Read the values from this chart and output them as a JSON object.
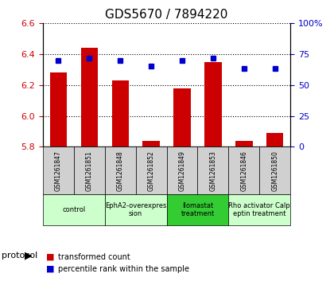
{
  "title": "GDS5670 / 7894220",
  "samples": [
    "GSM1261847",
    "GSM1261851",
    "GSM1261848",
    "GSM1261852",
    "GSM1261849",
    "GSM1261853",
    "GSM1261846",
    "GSM1261850"
  ],
  "red_values": [
    6.28,
    6.44,
    6.23,
    5.84,
    6.18,
    6.35,
    5.84,
    5.89
  ],
  "blue_values": [
    70,
    72,
    70,
    65,
    70,
    72,
    63,
    63
  ],
  "ylim_left": [
    5.8,
    6.6
  ],
  "ylim_right": [
    0,
    100
  ],
  "yticks_left": [
    5.8,
    6.0,
    6.2,
    6.4,
    6.6
  ],
  "yticks_right": [
    0,
    25,
    50,
    75,
    100
  ],
  "ytick_labels_right": [
    "0",
    "25",
    "50",
    "75",
    "100%"
  ],
  "bar_color": "#cc0000",
  "dot_color": "#0000cc",
  "bar_bottom": 5.8,
  "groups": [
    {
      "label": "control",
      "indices": [
        0,
        1
      ],
      "color": "#ccffcc"
    },
    {
      "label": "EphA2-overexpres\nsion",
      "indices": [
        2,
        3
      ],
      "color": "#ccffcc"
    },
    {
      "label": "Ilomastat\ntreatment",
      "indices": [
        4,
        5
      ],
      "color": "#33cc33"
    },
    {
      "label": "Rho activator Calp\neptin treatment",
      "indices": [
        6,
        7
      ],
      "color": "#ccffcc"
    }
  ],
  "protocol_label": "protocol",
  "legend_red": "transformed count",
  "legend_blue": "percentile rank within the sample",
  "grid_color": "#000000",
  "tick_label_color_left": "#cc0000",
  "tick_label_color_right": "#0000cc"
}
